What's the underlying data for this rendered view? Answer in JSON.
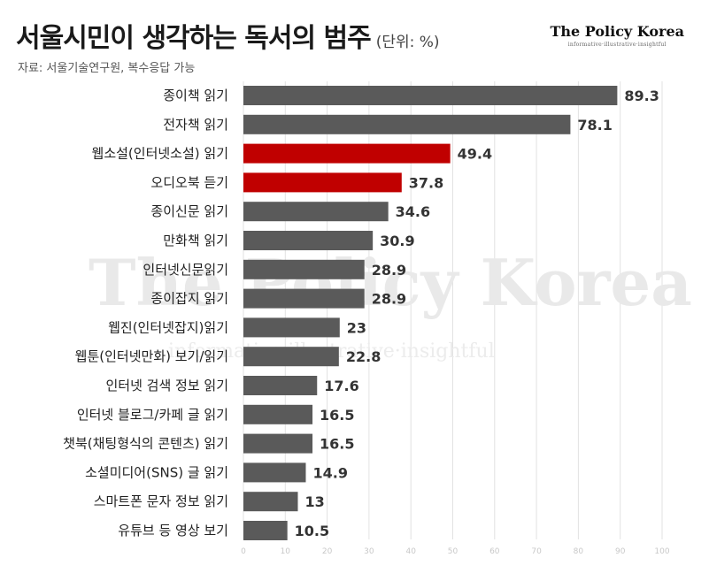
{
  "header": {
    "title": "서울시민이 생각하는 독서의 범주",
    "unit": "(단위: %)",
    "source": "자료: 서울기술연구원, 복수응답 가능"
  },
  "brand": {
    "name": "The Policy Korea",
    "tagline": "informative·illustrative·insightful"
  },
  "watermark": {
    "name": "The Policy Korea",
    "tagline": "informative·illustrative·insightful"
  },
  "colors": {
    "default_bar": "#5a5a5a",
    "highlight_bar": "#c00000",
    "grid": "#e2e2e2"
  },
  "chart_data": {
    "type": "bar",
    "orientation": "horizontal",
    "title": "서울시민이 생각하는 독서의 범주",
    "categories": [
      "종이책 읽기",
      "전자책 읽기",
      "웹소설(인터넷소설) 읽기",
      "오디오북 듣기",
      "종이신문 읽기",
      "만화책 읽기",
      "인터넷신문읽기",
      "종이잡지 읽기",
      "웹진(인터넷잡지)읽기",
      "웹툰(인터넷만화) 보기/읽기",
      "인터넷 검색 정보 읽기",
      "인터넷 블로그/카페 글 읽기",
      "챗북(채팅형식의 콘텐츠) 읽기",
      "소셜미디어(SNS) 글 읽기",
      "스마트폰 문자 정보 읽기",
      "유튜브 등 영상 보기"
    ],
    "values": [
      89.3,
      78.1,
      49.4,
      37.8,
      34.6,
      30.9,
      28.9,
      28.9,
      23,
      22.8,
      17.6,
      16.5,
      16.5,
      14.9,
      13,
      10.5
    ],
    "value_labels": [
      "89.3",
      "78.1",
      "49.4",
      "37.8",
      "34.6",
      "30.9",
      "28.9",
      "28.9",
      "23",
      "22.8",
      "17.6",
      "16.5",
      "16.5",
      "14.9",
      "13",
      "10.5"
    ],
    "highlighted": [
      false,
      false,
      true,
      true,
      false,
      false,
      false,
      false,
      false,
      false,
      false,
      false,
      false,
      false,
      false,
      false
    ],
    "xlim": [
      0,
      100
    ],
    "xticks": [
      0,
      10,
      20,
      30,
      40,
      50,
      60,
      70,
      80,
      90,
      100
    ],
    "xtick_labels": [
      "0",
      "10",
      "20",
      "30",
      "40",
      "50",
      "60",
      "70",
      "80",
      "90",
      "100"
    ],
    "grid": true,
    "legend": "none"
  }
}
